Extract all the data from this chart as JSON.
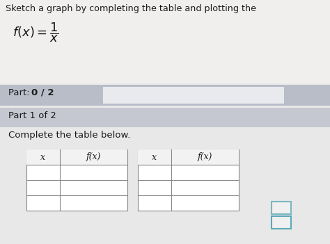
{
  "title_text": "Sketch a graph by completing the table and plotting the",
  "part_label": "Part: ",
  "part_bold": "0 / 2",
  "part1_label": "Part 1 of 2",
  "complete_label": "Complete the table below.",
  "col_headers": [
    "x",
    "f(x)",
    "x",
    "f(x)"
  ],
  "bg_color": "#e8e8e8",
  "top_bg_color": "#f0efee",
  "part_bar_color": "#b8bdc8",
  "progress_bar_color": "#dde0e8",
  "progress_bar_light": "#e8eaed",
  "part1_bar_color": "#c5c8d0",
  "white": "#ffffff",
  "dark_text": "#1a1a1a",
  "table_rows": 3,
  "frac_box_fill": "#f0f0f0",
  "frac_box_border": "#7ab8c0",
  "frac_box_inner_border": "#5aaab8"
}
